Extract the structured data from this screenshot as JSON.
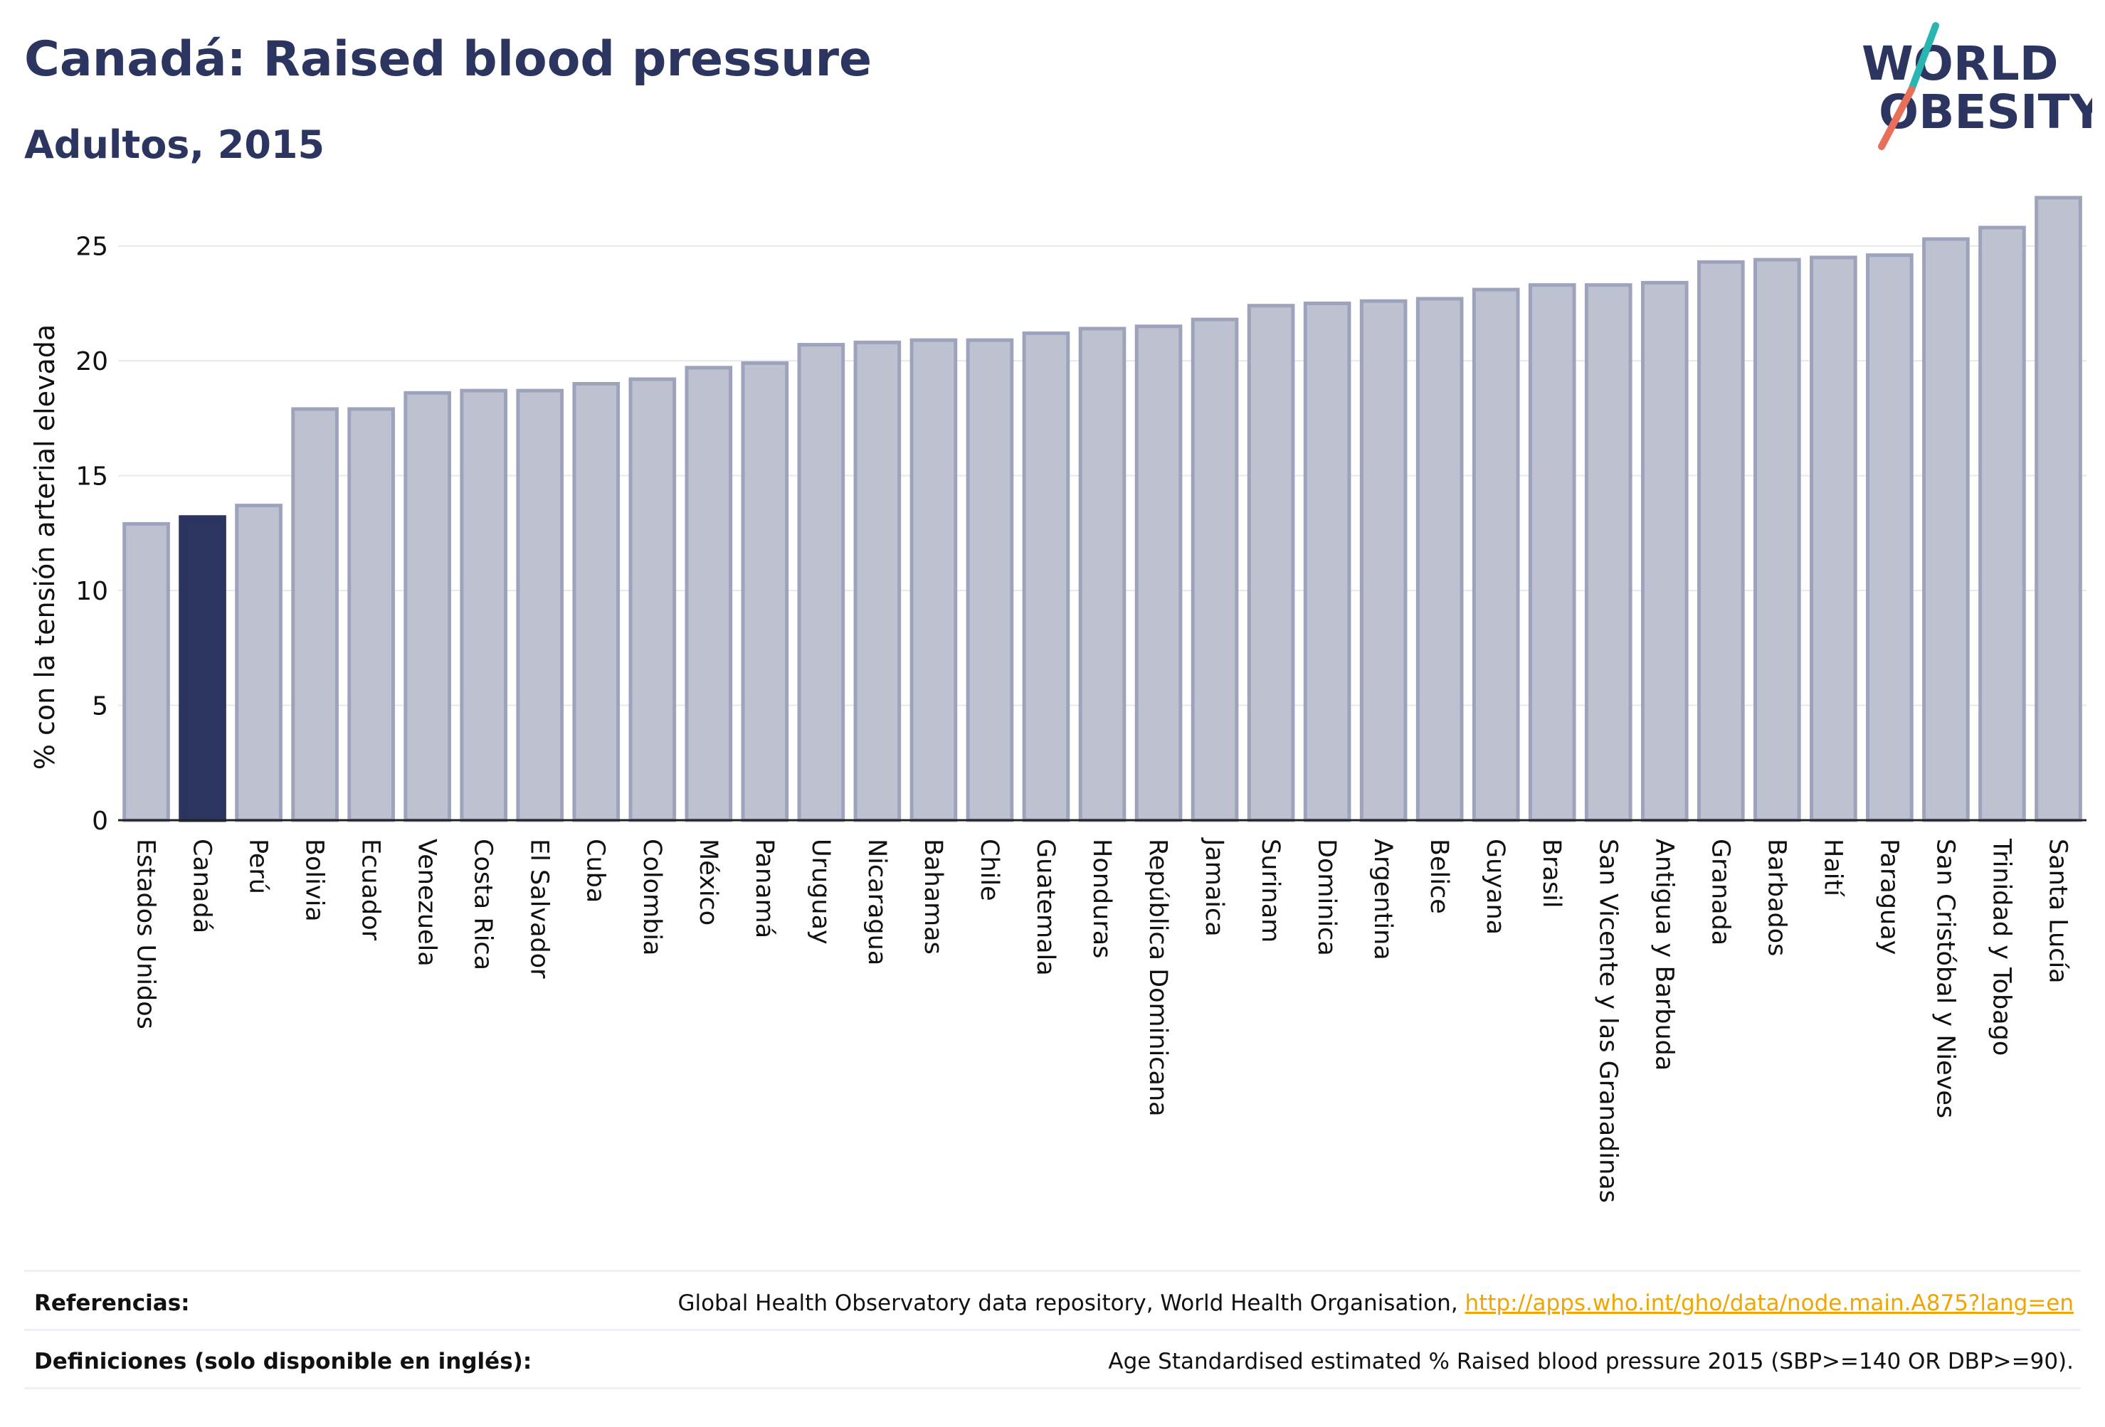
{
  "header": {
    "title": "Canadá: Raised blood pressure",
    "subtitle": "Adultos, 2015"
  },
  "logo": {
    "line1": "WORLD",
    "line2": "OBESITY",
    "accent_teal": "#2bb5b0",
    "accent_coral": "#e8705a"
  },
  "chart_data": {
    "type": "bar",
    "ylabel": "% con la tensión arterial elevada",
    "ylim": [
      0,
      27.5
    ],
    "yticks": [
      0,
      5,
      10,
      15,
      20,
      25
    ],
    "grid": true,
    "highlight": "Canadá",
    "colors": {
      "bar": "#bec2d0",
      "bar_border": "#9ea3bc",
      "highlight": "#2b3560",
      "grid": "#e6e8ef"
    },
    "categories": [
      "Estados Unidos",
      "Canadá",
      "Perú",
      "Bolivia",
      "Ecuador",
      "Venezuela",
      "Costa Rica",
      "El Salvador",
      "Cuba",
      "Colombia",
      "México",
      "Panamá",
      "Uruguay",
      "Nicaragua",
      "Bahamas",
      "Chile",
      "Guatemala",
      "Honduras",
      "República Dominicana",
      "Jamaica",
      "Surinam",
      "Dominica",
      "Argentina",
      "Belice",
      "Guyana",
      "Brasil",
      "San Vicente y las Granadinas",
      "Antigua y Barbuda",
      "Granada",
      "Barbados",
      "Haití",
      "Paraguay",
      "San Cristóbal y Nieves",
      "Trinidad y Tobago",
      "Santa Lucía"
    ],
    "values": [
      12.9,
      13.2,
      13.7,
      17.9,
      17.9,
      18.6,
      18.7,
      18.7,
      19.0,
      19.2,
      19.7,
      19.9,
      20.7,
      20.8,
      20.9,
      20.9,
      21.2,
      21.4,
      21.5,
      21.8,
      22.4,
      22.5,
      22.6,
      22.7,
      23.1,
      23.3,
      23.3,
      23.4,
      24.3,
      24.4,
      24.5,
      24.6,
      25.3,
      25.8,
      27.1
    ]
  },
  "footer": {
    "references_label": "Referencias:",
    "references_text": "Global Health Observatory data repository, World Health Organisation, ",
    "references_link": "http://apps.who.int/gho/data/node.main.A875?lang=en",
    "definitions_label": "Definiciones (solo disponible en inglés):",
    "definitions_text": "Age Standardised estimated % Raised blood pressure 2015 (SBP>=140 OR DBP>=90)."
  }
}
